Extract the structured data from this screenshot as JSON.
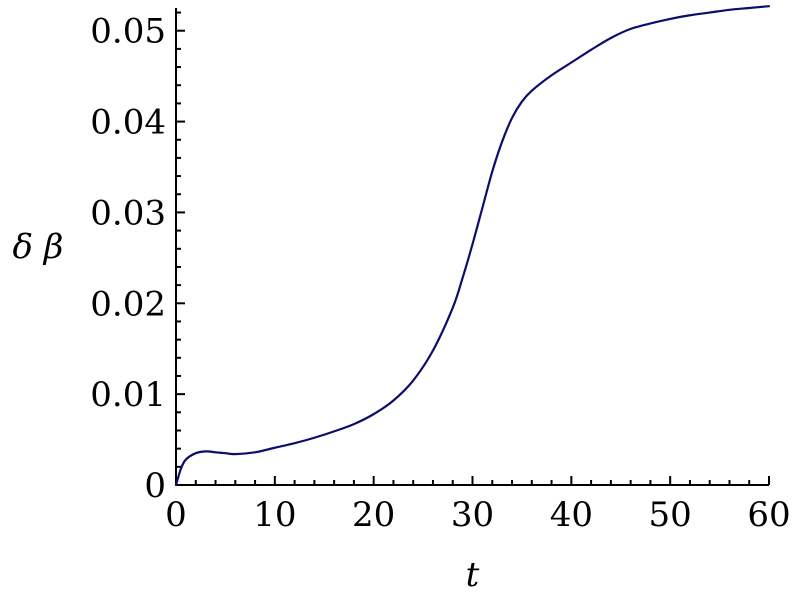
{
  "chart_data": {
    "type": "line",
    "title": "",
    "xlabel": "t",
    "ylabel": "δ β",
    "xlim": [
      0,
      60
    ],
    "ylim": [
      0,
      0.0525
    ],
    "xticks": [
      0,
      10,
      20,
      30,
      40,
      50,
      60
    ],
    "xtick_labels": [
      "0",
      "10",
      "20",
      "30",
      "40",
      "50",
      "60"
    ],
    "yticks": [
      0,
      0.01,
      0.02,
      0.03,
      0.04,
      0.05
    ],
    "ytick_labels": [
      "0",
      "0.01",
      "0.02",
      "0.03",
      "0.04",
      "0.05"
    ],
    "grid": false,
    "legend": "none",
    "colors": {
      "series": "#0d0d6b",
      "axis": "#000000"
    },
    "series": [
      {
        "x": [
          0,
          0.5,
          1,
          2,
          3,
          4,
          5,
          6,
          8,
          10,
          12,
          14,
          16,
          18,
          20,
          22,
          24,
          26,
          28,
          29,
          30,
          31,
          32,
          33,
          34,
          35,
          36,
          38,
          40,
          42,
          44,
          46,
          48,
          50,
          52,
          54,
          56,
          58,
          60
        ],
        "values": [
          0,
          0.0018,
          0.0028,
          0.0035,
          0.0037,
          0.0036,
          0.0035,
          0.0034,
          0.0036,
          0.0041,
          0.0046,
          0.0052,
          0.0059,
          0.0067,
          0.0078,
          0.0093,
          0.0115,
          0.0148,
          0.0195,
          0.0228,
          0.0265,
          0.0305,
          0.0345,
          0.0378,
          0.0404,
          0.0422,
          0.0434,
          0.0451,
          0.0465,
          0.0479,
          0.0492,
          0.0502,
          0.0508,
          0.0513,
          0.0517,
          0.052,
          0.0523,
          0.0525,
          0.0527
        ]
      }
    ]
  }
}
